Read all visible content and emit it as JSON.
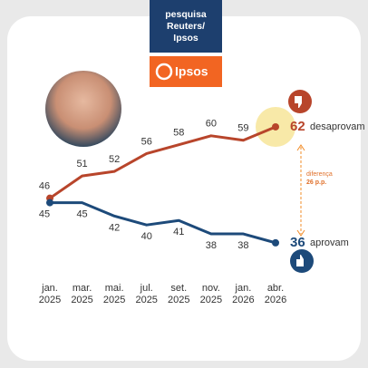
{
  "header": {
    "title": "pesquisa Reuters/ Ipsos",
    "logo": "Ipsos"
  },
  "chart_data": {
    "type": "line",
    "categories": [
      {
        "value": 0,
        "label": "jan. 2025"
      },
      {
        "value": 1,
        "label": "mar. 2025"
      },
      {
        "value": 2,
        "label": "mai. 2025"
      },
      {
        "value": 3,
        "label": "jul. 2025"
      },
      {
        "value": 4,
        "label": "set. 2025"
      },
      {
        "value": 5,
        "label": "nov. 2025"
      },
      {
        "value": 6,
        "label": "jan. 2026"
      },
      {
        "value": 7,
        "label": "abr. 2026"
      }
    ],
    "series": [
      {
        "name": "desaprovam",
        "color": "#b8452b",
        "values": [
          46,
          51,
          52,
          56,
          58,
          60,
          59,
          62
        ]
      },
      {
        "name": "aprovam",
        "color": "#1d4a7a",
        "values": [
          45,
          45,
          42,
          40,
          41,
          38,
          38,
          36
        ]
      }
    ],
    "ylim": [
      30,
      70
    ],
    "annotation": [
      "diferença",
      "26 p.p."
    ]
  }
}
